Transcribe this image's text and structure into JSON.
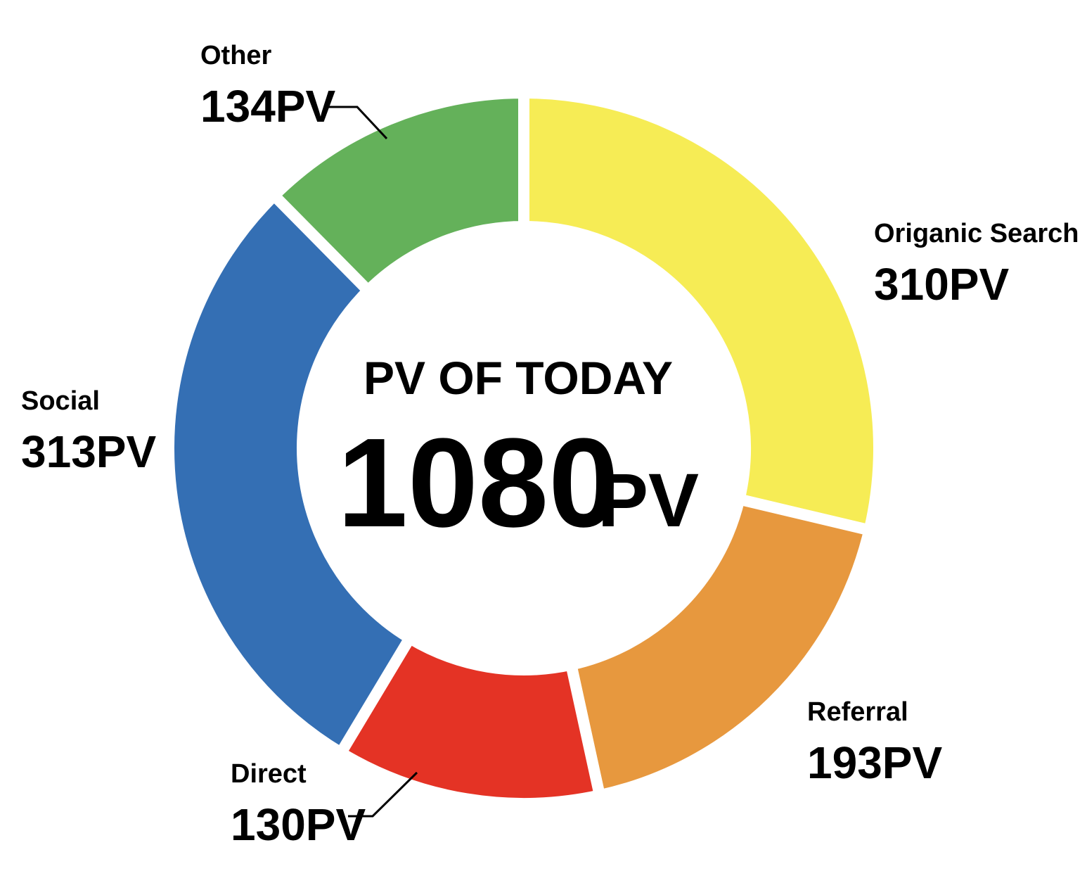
{
  "chart_data": {
    "type": "pie",
    "categories": [
      "Origanic Search",
      "Referral",
      "Direct",
      "Social",
      "Other"
    ],
    "values": [
      310,
      193,
      130,
      313,
      134
    ],
    "value_labels": [
      "310PV",
      "193PV",
      "130PV",
      "313PV",
      "134PV"
    ],
    "colors": [
      "#f6ec55",
      "#e7983e",
      "#e43325",
      "#346fb4",
      "#64b15a"
    ],
    "center_title": "PV OF TODAY",
    "total": 1080,
    "total_unit": "PV"
  }
}
